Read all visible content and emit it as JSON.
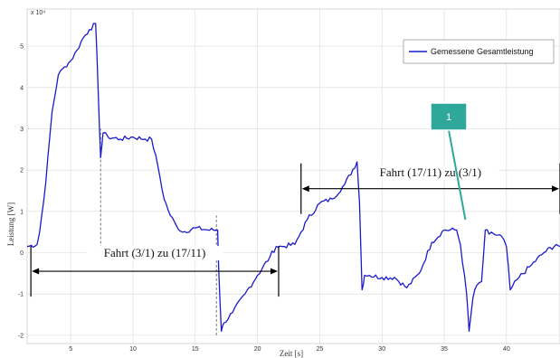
{
  "chart_data": {
    "type": "line",
    "xlabel": "Zeit [s]",
    "ylabel": "Leistung [W]",
    "y_exponent_label": "x 10⁴",
    "xlim": [
      1.5,
      44.3
    ],
    "ylim": [
      -2.2,
      5.9
    ],
    "x_ticks": [
      5,
      10,
      15,
      20,
      25,
      30,
      35,
      40
    ],
    "x_tick_labels": [
      "5",
      "10",
      "15",
      "20",
      "25",
      "30",
      "35",
      "40"
    ],
    "y_ticks": [
      -2,
      -1,
      0,
      1,
      2,
      3,
      4,
      5
    ],
    "y_tick_labels": [
      "-2",
      "-1",
      "0",
      "1",
      "2",
      "3",
      "4",
      "5"
    ],
    "grid": true,
    "legend_position": "top-right",
    "series": [
      {
        "name": "Gemessene Gesamtleistung",
        "color": "#1a1acc",
        "x": [
          1.5,
          2.3,
          2.5,
          3,
          3.5,
          4,
          4.5,
          5,
          5.5,
          6,
          6.5,
          7,
          7.2,
          7.4,
          7.6,
          8,
          9,
          10,
          11,
          11.5,
          12,
          12.5,
          13,
          13.5,
          14,
          15,
          16,
          16.8,
          16.9,
          17.1,
          17.3,
          18,
          19,
          20,
          21,
          21.5,
          22,
          23,
          23.5,
          24,
          25,
          26,
          27,
          28,
          28.2,
          28.4,
          28.6,
          29,
          30,
          31,
          32,
          33,
          34,
          35,
          36,
          36.3,
          36.8,
          37,
          37.3,
          37.6,
          38,
          38.3,
          38.6,
          39,
          39.6,
          40,
          40.3,
          41,
          42,
          43,
          44,
          44.3
        ],
        "y": [
          0.15,
          0.2,
          0.5,
          1.7,
          3.4,
          4.3,
          4.5,
          4.65,
          4.9,
          5.2,
          5.4,
          5.55,
          4.0,
          2.3,
          2.9,
          2.8,
          2.75,
          2.8,
          2.75,
          2.75,
          2.1,
          1.3,
          0.9,
          0.65,
          0.5,
          0.6,
          0.55,
          0.55,
          -0.5,
          -1.9,
          -1.7,
          -1.45,
          -1.0,
          -0.55,
          -0.1,
          0.15,
          0.15,
          0.2,
          0.5,
          0.8,
          1.2,
          1.3,
          1.65,
          2.2,
          1.2,
          -0.9,
          -0.55,
          -0.55,
          -0.6,
          -0.6,
          -0.85,
          -0.5,
          0.25,
          0.55,
          0.55,
          0.2,
          -1.0,
          -1.9,
          -1.1,
          -0.8,
          -0.7,
          0.55,
          0.45,
          0.45,
          0.4,
          0.15,
          -0.9,
          -0.6,
          -0.3,
          0.0,
          0.2,
          0.15
        ]
      }
    ],
    "annotations": [
      {
        "text": "Fahrt (3/1) zu (17/11)",
        "x_start": 1.8,
        "x_end": 21.7,
        "y": -0.45,
        "label_y": -0.1
      },
      {
        "text": "Fahrt (17/11) zu (3/1)",
        "x_start": 23.5,
        "x_end": 44.3,
        "y": 1.55,
        "label_y": 1.85
      }
    ],
    "reference_lines": [
      {
        "x": 7.4,
        "y_from": 0.0,
        "y_to": 3.0,
        "style": "dashed"
      },
      {
        "x": 16.7,
        "y_from": -2.0,
        "y_to": 0.9,
        "style": "dashed"
      }
    ],
    "callout": {
      "label": "1",
      "color": "#2ea89a",
      "point_x": 36.7,
      "point_y": 0.8
    }
  }
}
